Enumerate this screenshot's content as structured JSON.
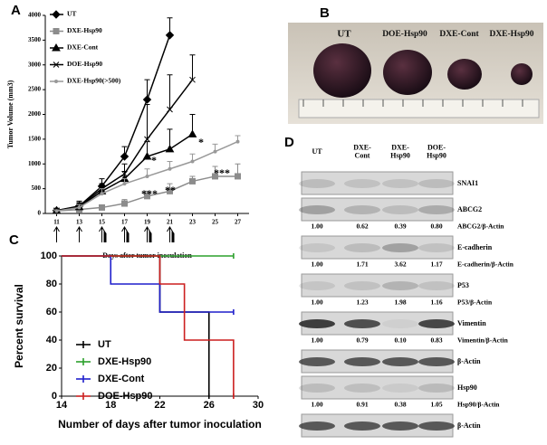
{
  "panel_labels": [
    "A",
    "B",
    "C",
    "D"
  ],
  "chart_data": [
    {
      "type": "line",
      "x_label": "Days after tumor  inoculation",
      "y_label": "Tumor Volume (mm3)",
      "xlim": [
        10,
        28
      ],
      "ylim": [
        0,
        4000
      ],
      "xticks": [
        11,
        13,
        15,
        17,
        19,
        21,
        23,
        25,
        27
      ],
      "yticks": [
        0,
        500,
        1000,
        1500,
        2000,
        2500,
        3000,
        3500,
        4000
      ],
      "annotations": [
        "*",
        "*",
        "***",
        "**",
        "***"
      ],
      "series": [
        {
          "name": "UT",
          "color": "#000000",
          "marker": "diamond",
          "x": [
            11,
            13,
            15,
            17,
            19,
            21
          ],
          "values": [
            60,
            150,
            550,
            1150,
            2300,
            3600
          ],
          "errors": [
            30,
            100,
            150,
            200,
            400,
            350
          ]
        },
        {
          "name": "DXE-Hsp90",
          "color": "#8c8c8c",
          "marker": "square",
          "x": [
            11,
            13,
            15,
            17,
            19,
            21,
            23,
            25,
            27
          ],
          "values": [
            50,
            80,
            120,
            200,
            350,
            450,
            650,
            750,
            750
          ],
          "errors": [
            20,
            40,
            50,
            80,
            100,
            150,
            100,
            200,
            250
          ]
        },
        {
          "name": "DXE-Cont",
          "color": "#000000",
          "marker": "triangle",
          "x": [
            11,
            13,
            15,
            17,
            19,
            21,
            23
          ],
          "values": [
            60,
            130,
            450,
            700,
            1150,
            1300,
            1600
          ],
          "errors": [
            30,
            80,
            150,
            150,
            300,
            400,
            400
          ]
        },
        {
          "name": "DOE-Hsp90",
          "color": "#000000",
          "marker": "cross",
          "x": [
            11,
            13,
            15,
            17,
            19,
            21,
            23
          ],
          "values": [
            60,
            140,
            500,
            800,
            1500,
            2100,
            2700
          ],
          "errors": [
            30,
            80,
            100,
            200,
            700,
            700,
            500
          ]
        },
        {
          "name": "DXE-Hsp90(>500)",
          "color": "#999999",
          "marker": "dot",
          "x": [
            11,
            13,
            15,
            17,
            19,
            21,
            23,
            25,
            27
          ],
          "values": [
            50,
            120,
            400,
            600,
            750,
            900,
            1050,
            1250,
            1450
          ],
          "errors": [
            20,
            60,
            100,
            100,
            150,
            150,
            150,
            150,
            120
          ]
        }
      ]
    },
    {
      "type": "step",
      "x_label": "Number of days after tumor inoculation",
      "y_label": "Percent survival",
      "xlim": [
        14,
        30
      ],
      "ylim": [
        0,
        100
      ],
      "xticks": [
        14,
        18,
        22,
        26,
        30
      ],
      "yticks": [
        0,
        20,
        40,
        60,
        80,
        100
      ],
      "series": [
        {
          "name": "UT",
          "color": "#000000",
          "x": [
            14,
            22,
            26
          ],
          "values": [
            100,
            60,
            0
          ]
        },
        {
          "name": "DXE-Hsp90",
          "color": "#2ca02c",
          "x": [
            14,
            28
          ],
          "values": [
            100,
            100
          ]
        },
        {
          "name": "DXE-Cont",
          "color": "#1f1fcc",
          "x": [
            14,
            18,
            22,
            28
          ],
          "values": [
            100,
            80,
            60,
            60
          ]
        },
        {
          "name": "DOE-Hsp90",
          "color": "#cc1f1f",
          "x": [
            14,
            22,
            24,
            28
          ],
          "values": [
            100,
            80,
            40,
            0
          ]
        }
      ]
    }
  ],
  "photo": {
    "labels": [
      "UT",
      "DOE-Hsp90",
      "DXE-Cont",
      "DXE-Hsp90"
    ]
  },
  "blot": {
    "columns": [
      "UT",
      "DXE-\nCont",
      "DXE-\nHsp90",
      "DOE-\nHsp90"
    ],
    "rows": [
      {
        "label": "SNAI1"
      },
      {
        "label": "ABCG2",
        "ratios": [
          "1.00",
          "0.62",
          "0.39",
          "0.80"
        ],
        "ratio_label": "ABCG2/β-Actin"
      },
      {
        "label": "E-cadherin",
        "ratios": [
          "1.00",
          "1.71",
          "3.62",
          "1.17"
        ],
        "ratio_label": "E-cadherin/β-Actin"
      },
      {
        "label": "P53",
        "ratios": [
          "1.00",
          "1.23",
          "1.98",
          "1.16"
        ],
        "ratio_label": "P53/β-Actin"
      },
      {
        "label": "Vimentin",
        "ratios": [
          "1.00",
          "0.79",
          "0.10",
          "0.83"
        ],
        "ratio_label": "Vimentin/β-Actin"
      },
      {
        "label": "β-Actin"
      },
      {
        "label": "Hsp90",
        "ratios": [
          "1.00",
          "0.91",
          "0.38",
          "1.05"
        ],
        "ratio_label": "Hsp90/β-Actin"
      },
      {
        "label": "β-Actin"
      }
    ]
  }
}
